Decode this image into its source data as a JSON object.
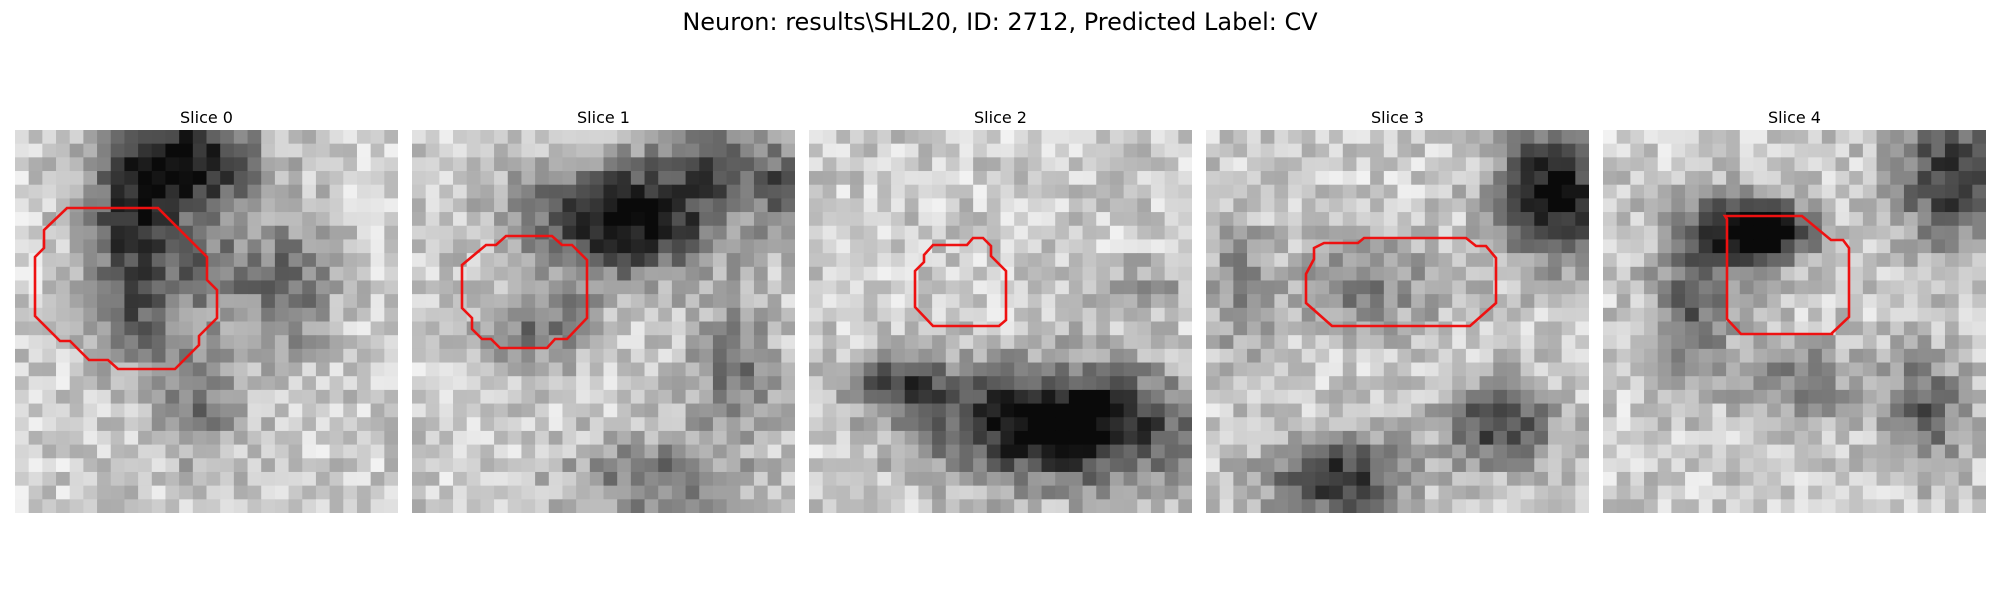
{
  "figure": {
    "title": "Neuron: results\\SHL20, ID: 2712, Predicted Label: CV"
  },
  "slices": [
    {
      "label": "Slice 0",
      "icon": "grayscale-microscopy-patch"
    },
    {
      "label": "Slice 1",
      "icon": "grayscale-microscopy-patch"
    },
    {
      "label": "Slice 2",
      "icon": "grayscale-microscopy-patch"
    },
    {
      "label": "Slice 3",
      "icon": "grayscale-microscopy-patch"
    },
    {
      "label": "Slice 4",
      "icon": "grayscale-microscopy-patch"
    }
  ],
  "colors": {
    "roi_outline": "#ee1111",
    "background": "#ffffff"
  }
}
